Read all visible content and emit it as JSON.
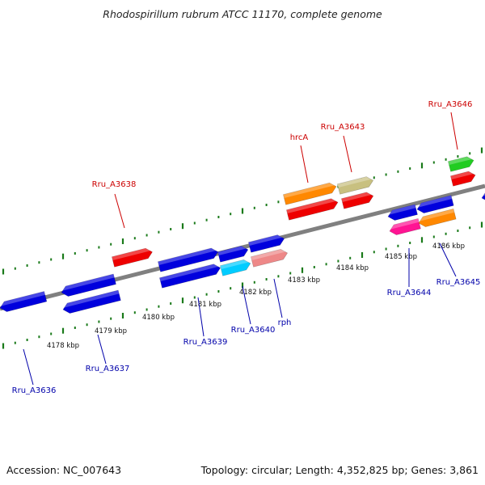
{
  "title": "Rhodospirillum rubrum ATCC 11170, complete genome",
  "footer": {
    "accession": "Accession: NC_007643",
    "summary": "Topology: circular; Length: 4,352,825 bp; Genes: 3,861"
  },
  "colors": {
    "backbone": "#808080",
    "tick": "#1a7a1a",
    "label_forward": "#cc0000",
    "label_reverse": "#0000aa",
    "leader": "#333333"
  },
  "axis": {
    "ticks": [
      {
        "label": "4178 kbp"
      },
      {
        "label": "4179 kbp"
      },
      {
        "label": "4180 kbp"
      },
      {
        "label": "4181 kbp"
      },
      {
        "label": "4182 kbp"
      },
      {
        "label": "4183 kbp"
      },
      {
        "label": "4184 kbp"
      },
      {
        "label": "4185 kbp"
      },
      {
        "label": "4186 kbp"
      }
    ]
  },
  "labels": [
    {
      "text": "Rru_A3636",
      "strand": "reverse"
    },
    {
      "text": "Rru_A3637",
      "strand": "reverse"
    },
    {
      "text": "Rru_A3638",
      "strand": "forward"
    },
    {
      "text": "Rru_A3639",
      "strand": "reverse"
    },
    {
      "text": "Rru_A3640",
      "strand": "reverse"
    },
    {
      "text": "rph",
      "strand": "reverse"
    },
    {
      "text": "hrcA",
      "strand": "forward"
    },
    {
      "text": "Rru_A3643",
      "strand": "forward"
    },
    {
      "text": "Rru_A3644",
      "strand": "reverse"
    },
    {
      "text": "Rru_A3645",
      "strand": "reverse"
    },
    {
      "text": "Rru_A3646",
      "strand": "forward"
    }
  ]
}
